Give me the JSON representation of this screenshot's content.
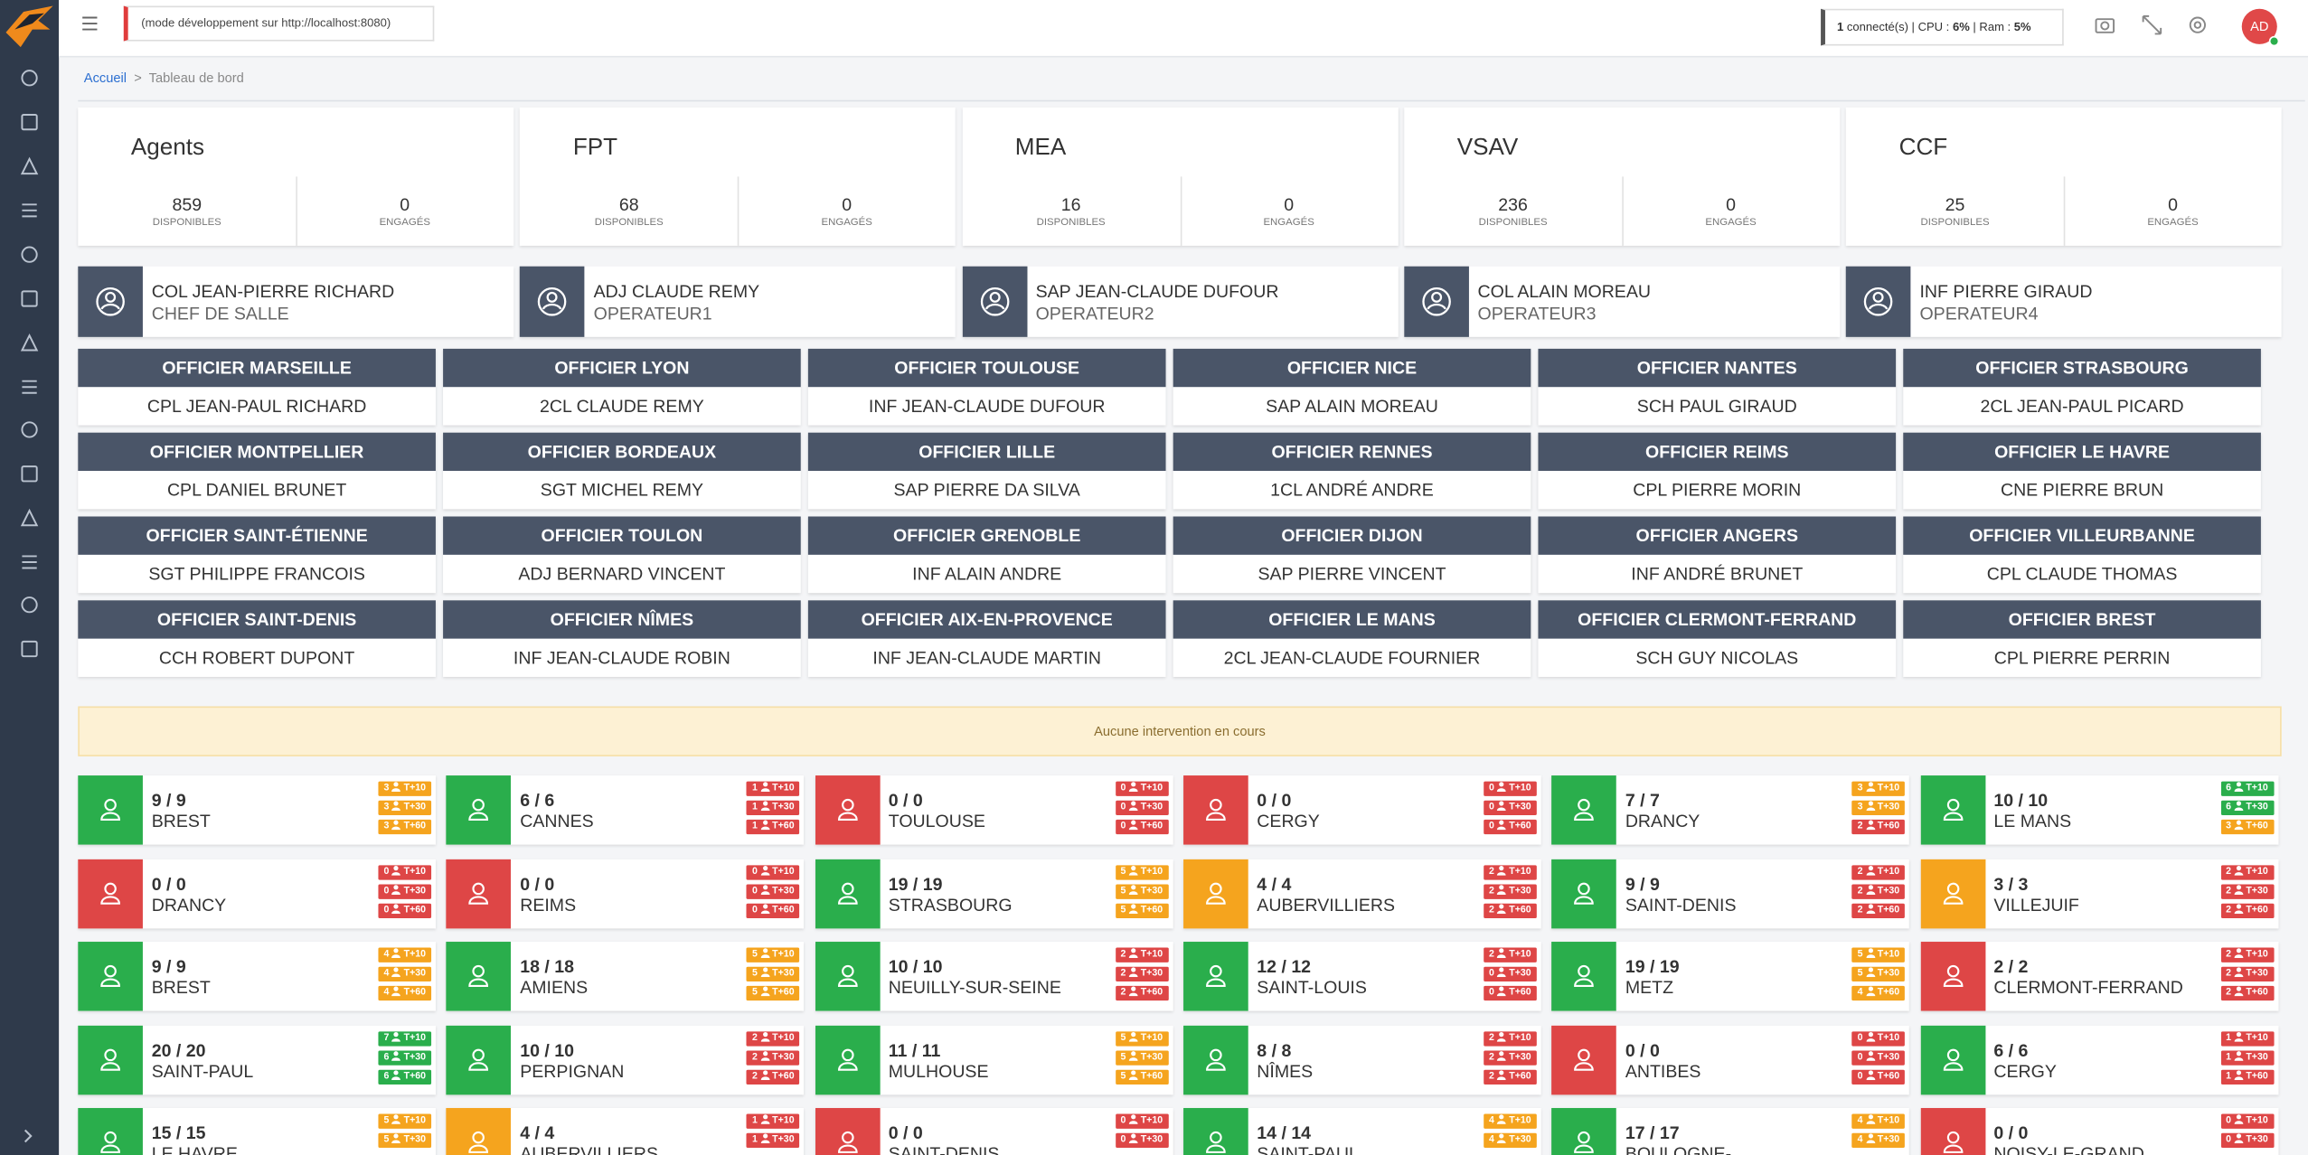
{
  "header": {
    "dev_mode": "(mode développement sur http://localhost:8080)",
    "status": {
      "connected": "1",
      "connected_label": "connecté(s)",
      "cpu_label": "| CPU :",
      "cpu": "6%",
      "ram_label": "| Ram :",
      "ram": "5%"
    },
    "avatar": "AD"
  },
  "breadcrumb": {
    "home": "Accueil",
    "separator": ">",
    "current": "Tableau de bord"
  },
  "vehicle_labels": {
    "available": "DISPONIBLES",
    "engaged": "ENGAGÉS"
  },
  "vehicles": [
    {
      "name": "Agents",
      "available": 859,
      "engaged": 0
    },
    {
      "name": "FPT",
      "available": 68,
      "engaged": 0
    },
    {
      "name": "MEA",
      "available": 16,
      "engaged": 0
    },
    {
      "name": "VSAV",
      "available": 236,
      "engaged": 0
    },
    {
      "name": "CCF",
      "available": 25,
      "engaged": 0
    }
  ],
  "staff": [
    {
      "name": "COL JEAN-PIERRE RICHARD",
      "role": "CHEF DE SALLE"
    },
    {
      "name": "ADJ CLAUDE REMY",
      "role": "OPERATEUR1"
    },
    {
      "name": "SAP JEAN-CLAUDE DUFOUR",
      "role": "OPERATEUR2"
    },
    {
      "name": "COL ALAIN MOREAU",
      "role": "OPERATEUR3"
    },
    {
      "name": "INF PIERRE GIRAUD",
      "role": "OPERATEUR4"
    }
  ],
  "officers": [
    {
      "title": "OFFICIER MARSEILLE",
      "name": "CPL JEAN-PAUL RICHARD"
    },
    {
      "title": "OFFICIER LYON",
      "name": "2CL CLAUDE REMY"
    },
    {
      "title": "OFFICIER TOULOUSE",
      "name": "INF JEAN-CLAUDE DUFOUR"
    },
    {
      "title": "OFFICIER NICE",
      "name": "SAP ALAIN MOREAU"
    },
    {
      "title": "OFFICIER NANTES",
      "name": "SCH PAUL GIRAUD"
    },
    {
      "title": "OFFICIER STRASBOURG",
      "name": "2CL JEAN-PAUL PICARD"
    },
    {
      "title": "OFFICIER MONTPELLIER",
      "name": "CPL DANIEL BRUNET"
    },
    {
      "title": "OFFICIER BORDEAUX",
      "name": "SGT MICHEL REMY"
    },
    {
      "title": "OFFICIER LILLE",
      "name": "SAP PIERRE DA SILVA"
    },
    {
      "title": "OFFICIER RENNES",
      "name": "1CL ANDRÉ ANDRE"
    },
    {
      "title": "OFFICIER REIMS",
      "name": "CPL PIERRE MORIN"
    },
    {
      "title": "OFFICIER LE HAVRE",
      "name": "CNE PIERRE BRUN"
    },
    {
      "title": "OFFICIER SAINT-ÉTIENNE",
      "name": "SGT PHILIPPE FRANCOIS"
    },
    {
      "title": "OFFICIER TOULON",
      "name": "ADJ BERNARD VINCENT"
    },
    {
      "title": "OFFICIER GRENOBLE",
      "name": "INF ALAIN ANDRE"
    },
    {
      "title": "OFFICIER DIJON",
      "name": "SAP PIERRE VINCENT"
    },
    {
      "title": "OFFICIER ANGERS",
      "name": "INF ANDRÉ BRUNET"
    },
    {
      "title": "OFFICIER VILLEURBANNE",
      "name": "CPL CLAUDE THOMAS"
    },
    {
      "title": "OFFICIER SAINT-DENIS",
      "name": "CCH ROBERT DUPONT"
    },
    {
      "title": "OFFICIER NÎMES",
      "name": "INF JEAN-CLAUDE ROBIN"
    },
    {
      "title": "OFFICIER AIX-EN-PROVENCE",
      "name": "INF JEAN-CLAUDE MARTIN"
    },
    {
      "title": "OFFICIER LE MANS",
      "name": "2CL JEAN-CLAUDE FOURNIER"
    },
    {
      "title": "OFFICIER CLERMONT-FERRAND",
      "name": "SCH GUY NICOLAS"
    },
    {
      "title": "OFFICIER BREST",
      "name": "CPL PIERRE PERRIN"
    }
  ],
  "alert": "Aucune intervention en cours",
  "badge_labels": [
    "T+10",
    "T+30",
    "T+60"
  ],
  "stations": [
    {
      "count": "9 / 9",
      "name": "BREST",
      "status": "green",
      "badges": [
        {
          "value": 3,
          "status": "orange"
        },
        {
          "value": 3,
          "status": "orange"
        },
        {
          "value": 3,
          "status": "orange"
        }
      ]
    },
    {
      "count": "6 / 6",
      "name": "CANNES",
      "status": "green",
      "badges": [
        {
          "value": 1,
          "status": "red"
        },
        {
          "value": 1,
          "status": "red"
        },
        {
          "value": 1,
          "status": "red"
        }
      ]
    },
    {
      "count": "0 / 0",
      "name": "TOULOUSE",
      "status": "red",
      "badges": [
        {
          "value": 0,
          "status": "red"
        },
        {
          "value": 0,
          "status": "red"
        },
        {
          "value": 0,
          "status": "red"
        }
      ]
    },
    {
      "count": "0 / 0",
      "name": "CERGY",
      "status": "red",
      "badges": [
        {
          "value": 0,
          "status": "red"
        },
        {
          "value": 0,
          "status": "red"
        },
        {
          "value": 0,
          "status": "red"
        }
      ]
    },
    {
      "count": "7 / 7",
      "name": "DRANCY",
      "status": "green",
      "badges": [
        {
          "value": 3,
          "status": "orange"
        },
        {
          "value": 3,
          "status": "orange"
        },
        {
          "value": 2,
          "status": "red"
        }
      ]
    },
    {
      "count": "10 / 10",
      "name": "LE MANS",
      "status": "green",
      "badges": [
        {
          "value": 6,
          "status": "green"
        },
        {
          "value": 6,
          "status": "green"
        },
        {
          "value": 3,
          "status": "orange"
        }
      ]
    },
    {
      "count": "0 / 0",
      "name": "DRANCY",
      "status": "red",
      "badges": [
        {
          "value": 0,
          "status": "red"
        },
        {
          "value": 0,
          "status": "red"
        },
        {
          "value": 0,
          "status": "red"
        }
      ]
    },
    {
      "count": "0 / 0",
      "name": "REIMS",
      "status": "red",
      "badges": [
        {
          "value": 0,
          "status": "red"
        },
        {
          "value": 0,
          "status": "red"
        },
        {
          "value": 0,
          "status": "red"
        }
      ]
    },
    {
      "count": "19 / 19",
      "name": "STRASBOURG",
      "status": "green",
      "badges": [
        {
          "value": 5,
          "status": "orange"
        },
        {
          "value": 5,
          "status": "orange"
        },
        {
          "value": 5,
          "status": "orange"
        }
      ]
    },
    {
      "count": "4 / 4",
      "name": "AUBERVILLIERS",
      "status": "orange",
      "badges": [
        {
          "value": 2,
          "status": "red"
        },
        {
          "value": 2,
          "status": "red"
        },
        {
          "value": 2,
          "status": "red"
        }
      ]
    },
    {
      "count": "9 / 9",
      "name": "SAINT-DENIS",
      "status": "green",
      "badges": [
        {
          "value": 2,
          "status": "red"
        },
        {
          "value": 2,
          "status": "red"
        },
        {
          "value": 2,
          "status": "red"
        }
      ]
    },
    {
      "count": "3 / 3",
      "name": "VILLEJUIF",
      "status": "orange",
      "badges": [
        {
          "value": 2,
          "status": "red"
        },
        {
          "value": 2,
          "status": "red"
        },
        {
          "value": 2,
          "status": "red"
        }
      ]
    },
    {
      "count": "9 / 9",
      "name": "BREST",
      "status": "green",
      "badges": [
        {
          "value": 4,
          "status": "orange"
        },
        {
          "value": 4,
          "status": "orange"
        },
        {
          "value": 4,
          "status": "orange"
        }
      ]
    },
    {
      "count": "18 / 18",
      "name": "AMIENS",
      "status": "green",
      "badges": [
        {
          "value": 5,
          "status": "orange"
        },
        {
          "value": 5,
          "status": "orange"
        },
        {
          "value": 5,
          "status": "orange"
        }
      ]
    },
    {
      "count": "10 / 10",
      "name": "NEUILLY-SUR-SEINE",
      "status": "green",
      "badges": [
        {
          "value": 2,
          "status": "red"
        },
        {
          "value": 2,
          "status": "red"
        },
        {
          "value": 2,
          "status": "red"
        }
      ]
    },
    {
      "count": "12 / 12",
      "name": "SAINT-LOUIS",
      "status": "green",
      "badges": [
        {
          "value": 2,
          "status": "red"
        },
        {
          "value": 0,
          "status": "red"
        },
        {
          "value": 0,
          "status": "red"
        }
      ]
    },
    {
      "count": "19 / 19",
      "name": "METZ",
      "status": "green",
      "badges": [
        {
          "value": 5,
          "status": "orange"
        },
        {
          "value": 5,
          "status": "orange"
        },
        {
          "value": 4,
          "status": "orange"
        }
      ]
    },
    {
      "count": "2 / 2",
      "name": "CLERMONT-FERRAND",
      "status": "red",
      "badges": [
        {
          "value": 2,
          "status": "red"
        },
        {
          "value": 2,
          "status": "red"
        },
        {
          "value": 2,
          "status": "red"
        }
      ]
    },
    {
      "count": "20 / 20",
      "name": "SAINT-PAUL",
      "status": "green",
      "badges": [
        {
          "value": 7,
          "status": "green"
        },
        {
          "value": 6,
          "status": "green"
        },
        {
          "value": 6,
          "status": "green"
        }
      ]
    },
    {
      "count": "10 / 10",
      "name": "PERPIGNAN",
      "status": "green",
      "badges": [
        {
          "value": 2,
          "status": "red"
        },
        {
          "value": 2,
          "status": "red"
        },
        {
          "value": 2,
          "status": "red"
        }
      ]
    },
    {
      "count": "11 / 11",
      "name": "MULHOUSE",
      "status": "green",
      "badges": [
        {
          "value": 5,
          "status": "orange"
        },
        {
          "value": 5,
          "status": "orange"
        },
        {
          "value": 5,
          "status": "orange"
        }
      ]
    },
    {
      "count": "8 / 8",
      "name": "NÎMES",
      "status": "green",
      "badges": [
        {
          "value": 2,
          "status": "red"
        },
        {
          "value": 2,
          "status": "red"
        },
        {
          "value": 2,
          "status": "red"
        }
      ]
    },
    {
      "count": "0 / 0",
      "name": "ANTIBES",
      "status": "red",
      "badges": [
        {
          "value": 0,
          "status": "red"
        },
        {
          "value": 0,
          "status": "red"
        },
        {
          "value": 0,
          "status": "red"
        }
      ]
    },
    {
      "count": "6 / 6",
      "name": "CERGY",
      "status": "green",
      "badges": [
        {
          "value": 1,
          "status": "red"
        },
        {
          "value": 1,
          "status": "red"
        },
        {
          "value": 1,
          "status": "red"
        }
      ]
    },
    {
      "count": "15 / 15",
      "name": "LE HAVRE",
      "status": "green",
      "badges": [
        {
          "value": 5,
          "status": "orange"
        },
        {
          "value": 5,
          "status": "orange"
        }
      ]
    },
    {
      "count": "4 / 4",
      "name": "AUBERVILLIERS",
      "status": "orange",
      "badges": [
        {
          "value": 1,
          "status": "red"
        },
        {
          "value": 1,
          "status": "red"
        }
      ]
    },
    {
      "count": "0 / 0",
      "name": "SAINT-DENIS",
      "status": "red",
      "badges": [
        {
          "value": 0,
          "status": "red"
        },
        {
          "value": 0,
          "status": "red"
        }
      ]
    },
    {
      "count": "14 / 14",
      "name": "SAINT-PAUL",
      "status": "green",
      "badges": [
        {
          "value": 4,
          "status": "orange"
        },
        {
          "value": 4,
          "status": "orange"
        }
      ]
    },
    {
      "count": "17 / 17",
      "name": "BOULOGNE-",
      "status": "green",
      "badges": [
        {
          "value": 4,
          "status": "orange"
        },
        {
          "value": 4,
          "status": "orange"
        }
      ]
    },
    {
      "count": "0 / 0",
      "name": "NOISY-LE-GRAND",
      "status": "red",
      "badges": [
        {
          "value": 0,
          "status": "red"
        },
        {
          "value": 0,
          "status": "red"
        }
      ]
    }
  ]
}
